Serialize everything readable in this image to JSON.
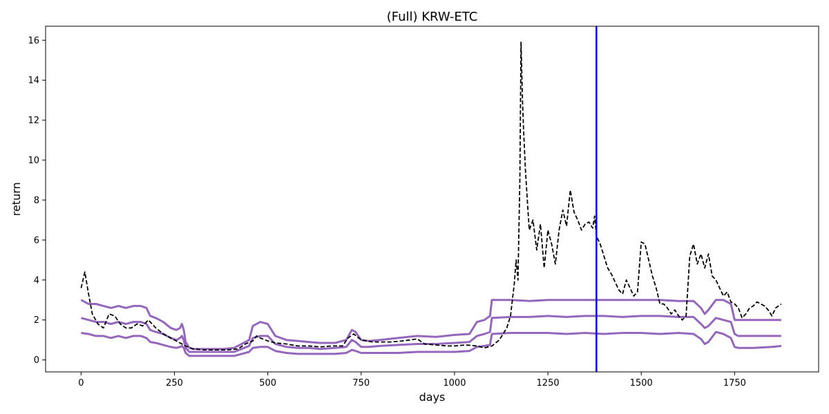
{
  "chart_data": {
    "type": "line",
    "title": "(Full) KRW-ETC",
    "xlabel": "days",
    "ylabel": "return",
    "xlim": [
      -95,
      1975
    ],
    "ylim": [
      -0.6,
      16.7
    ],
    "xticks": [
      0,
      250,
      500,
      750,
      1000,
      1250,
      1500,
      1750
    ],
    "yticks": [
      0,
      2,
      4,
      6,
      8,
      10,
      12,
      14,
      16
    ],
    "grid": false,
    "legend": "none",
    "vline": {
      "x": 1380,
      "color": "#0000ff"
    },
    "colors": {
      "price": "#000000",
      "bands": "#9467bd"
    },
    "series": [
      {
        "style": "dashed",
        "x": [
          0,
          10,
          20,
          30,
          45,
          60,
          75,
          90,
          105,
          120,
          135,
          150,
          165,
          180,
          200,
          220,
          240,
          260,
          280,
          300,
          330,
          360,
          390,
          420,
          440,
          460,
          470,
          480,
          500,
          520,
          550,
          580,
          610,
          640,
          670,
          700,
          715,
          730,
          750,
          780,
          800,
          830,
          860,
          880,
          900,
          920,
          950,
          980,
          1000,
          1030,
          1060,
          1080,
          1100,
          1120,
          1140,
          1150,
          1160,
          1165,
          1170,
          1175,
          1178,
          1182,
          1185,
          1190,
          1195,
          1200,
          1210,
          1220,
          1230,
          1240,
          1250,
          1260,
          1270,
          1280,
          1290,
          1300,
          1310,
          1320,
          1330,
          1340,
          1350,
          1360,
          1370,
          1375,
          1380,
          1390,
          1400,
          1410,
          1420,
          1430,
          1440,
          1450,
          1460,
          1470,
          1480,
          1490,
          1500,
          1510,
          1520,
          1530,
          1540,
          1550,
          1560,
          1570,
          1580,
          1590,
          1600,
          1610,
          1620,
          1630,
          1640,
          1650,
          1660,
          1670,
          1680,
          1690,
          1700,
          1710,
          1720,
          1730,
          1740,
          1750,
          1760,
          1770,
          1780,
          1790,
          1800,
          1810,
          1820,
          1830,
          1840,
          1850,
          1860,
          1875
        ],
        "values": [
          3.6,
          4.4,
          3.3,
          2.3,
          1.8,
          1.6,
          2.3,
          2.2,
          1.8,
          1.6,
          1.6,
          1.8,
          1.7,
          2.0,
          1.6,
          1.3,
          1.1,
          0.9,
          0.7,
          0.55,
          0.5,
          0.5,
          0.5,
          0.55,
          0.8,
          0.95,
          1.2,
          1.1,
          0.95,
          0.85,
          0.8,
          0.7,
          0.7,
          0.65,
          0.7,
          0.7,
          1.1,
          1.3,
          1.0,
          0.9,
          0.9,
          0.9,
          0.95,
          1.0,
          1.05,
          0.8,
          0.75,
          0.7,
          0.7,
          0.75,
          0.7,
          0.6,
          0.7,
          1.0,
          1.6,
          2.2,
          3.8,
          5.0,
          4.0,
          9.0,
          15.9,
          13.0,
          11.5,
          9.5,
          8.0,
          6.5,
          7.0,
          5.5,
          6.8,
          4.6,
          6.5,
          5.8,
          4.8,
          6.5,
          7.5,
          6.7,
          8.5,
          7.4,
          7.0,
          6.5,
          6.8,
          6.9,
          6.6,
          7.2,
          6.2,
          5.8,
          5.2,
          4.6,
          4.3,
          3.9,
          3.5,
          3.3,
          4.0,
          3.6,
          3.2,
          3.4,
          5.9,
          5.8,
          5.0,
          4.2,
          3.6,
          2.8,
          2.8,
          2.6,
          2.3,
          2.5,
          2.2,
          2.0,
          2.2,
          5.2,
          5.8,
          4.8,
          5.3,
          4.6,
          5.3,
          4.2,
          4.0,
          3.6,
          3.2,
          3.4,
          2.9,
          2.8,
          2.6,
          2.1,
          2.3,
          2.6,
          2.7,
          2.9,
          2.8,
          2.7,
          2.5,
          2.2,
          2.6,
          2.8
        ]
      },
      {
        "x": [
          0,
          20,
          40,
          60,
          80,
          100,
          120,
          140,
          160,
          175,
          185,
          200,
          220,
          240,
          255,
          265,
          270,
          275,
          280,
          290,
          300,
          320,
          350,
          380,
          410,
          430,
          450,
          460,
          480,
          500,
          520,
          550,
          580,
          610,
          640,
          680,
          710,
          725,
          735,
          750,
          770,
          800,
          850,
          900,
          950,
          1000,
          1040,
          1060,
          1080,
          1095,
          1100,
          1150,
          1200,
          1250,
          1300,
          1350,
          1400,
          1450,
          1500,
          1550,
          1600,
          1640,
          1660,
          1670,
          1680,
          1700,
          1720,
          1740,
          1750,
          1760,
          1800,
          1850,
          1875
        ],
        "values": [
          3.0,
          2.8,
          2.8,
          2.7,
          2.6,
          2.7,
          2.6,
          2.7,
          2.7,
          2.6,
          2.2,
          2.1,
          1.9,
          1.6,
          1.5,
          1.6,
          1.8,
          1.5,
          0.9,
          0.6,
          0.55,
          0.55,
          0.55,
          0.55,
          0.6,
          0.8,
          1.0,
          1.7,
          1.9,
          1.8,
          1.2,
          1.0,
          0.95,
          0.9,
          0.85,
          0.85,
          1.0,
          1.5,
          1.4,
          1.0,
          0.95,
          1.0,
          1.1,
          1.2,
          1.15,
          1.25,
          1.3,
          1.9,
          2.0,
          2.2,
          3.0,
          3.0,
          2.95,
          3.0,
          3.0,
          3.0,
          3.0,
          3.0,
          3.0,
          3.0,
          2.95,
          2.95,
          2.6,
          2.3,
          2.5,
          3.0,
          3.0,
          2.8,
          2.0,
          2.0,
          2.0,
          2.0,
          2.0
        ]
      },
      {
        "x": [
          0,
          20,
          40,
          60,
          80,
          100,
          120,
          140,
          160,
          175,
          185,
          200,
          220,
          240,
          255,
          265,
          270,
          275,
          280,
          290,
          300,
          320,
          350,
          380,
          410,
          430,
          450,
          460,
          480,
          500,
          520,
          550,
          580,
          610,
          640,
          680,
          710,
          725,
          735,
          750,
          770,
          800,
          850,
          900,
          950,
          1000,
          1040,
          1060,
          1080,
          1095,
          1100,
          1150,
          1200,
          1250,
          1300,
          1350,
          1400,
          1450,
          1500,
          1550,
          1600,
          1640,
          1660,
          1670,
          1680,
          1700,
          1720,
          1740,
          1750,
          1760,
          1800,
          1850,
          1875
        ],
        "values": [
          2.1,
          2.0,
          1.9,
          1.9,
          1.8,
          1.9,
          1.8,
          1.9,
          1.9,
          1.8,
          1.5,
          1.4,
          1.3,
          1.1,
          1.0,
          1.1,
          1.2,
          1.0,
          0.6,
          0.4,
          0.4,
          0.4,
          0.4,
          0.4,
          0.4,
          0.55,
          0.7,
          1.1,
          1.2,
          1.2,
          0.8,
          0.65,
          0.6,
          0.6,
          0.55,
          0.6,
          0.65,
          1.0,
          0.9,
          0.65,
          0.65,
          0.7,
          0.75,
          0.8,
          0.8,
          0.85,
          0.9,
          1.2,
          1.3,
          1.4,
          2.1,
          2.15,
          2.15,
          2.2,
          2.15,
          2.2,
          2.2,
          2.15,
          2.2,
          2.2,
          2.15,
          2.15,
          1.8,
          1.6,
          1.7,
          2.1,
          2.0,
          1.9,
          1.3,
          1.2,
          1.2,
          1.2,
          1.2
        ]
      },
      {
        "x": [
          0,
          20,
          40,
          60,
          80,
          100,
          120,
          140,
          160,
          175,
          185,
          200,
          220,
          240,
          255,
          265,
          270,
          275,
          280,
          290,
          300,
          320,
          350,
          380,
          410,
          430,
          450,
          460,
          480,
          500,
          520,
          550,
          580,
          610,
          640,
          680,
          710,
          725,
          735,
          750,
          770,
          800,
          850,
          900,
          950,
          1000,
          1040,
          1060,
          1080,
          1095,
          1100,
          1150,
          1200,
          1250,
          1300,
          1350,
          1400,
          1450,
          1500,
          1550,
          1600,
          1640,
          1660,
          1670,
          1680,
          1700,
          1720,
          1740,
          1750,
          1760,
          1800,
          1850,
          1875
        ],
        "values": [
          1.35,
          1.3,
          1.2,
          1.2,
          1.1,
          1.2,
          1.1,
          1.2,
          1.2,
          1.1,
          0.9,
          0.85,
          0.75,
          0.65,
          0.6,
          0.65,
          0.7,
          0.6,
          0.35,
          0.2,
          0.2,
          0.2,
          0.2,
          0.2,
          0.2,
          0.3,
          0.4,
          0.6,
          0.65,
          0.65,
          0.45,
          0.35,
          0.3,
          0.3,
          0.3,
          0.3,
          0.35,
          0.5,
          0.45,
          0.35,
          0.35,
          0.35,
          0.35,
          0.4,
          0.4,
          0.4,
          0.45,
          0.65,
          0.7,
          0.75,
          1.3,
          1.35,
          1.35,
          1.35,
          1.3,
          1.35,
          1.3,
          1.35,
          1.35,
          1.3,
          1.35,
          1.3,
          1.05,
          0.8,
          0.9,
          1.4,
          1.3,
          1.1,
          0.65,
          0.6,
          0.6,
          0.65,
          0.7
        ]
      }
    ]
  }
}
